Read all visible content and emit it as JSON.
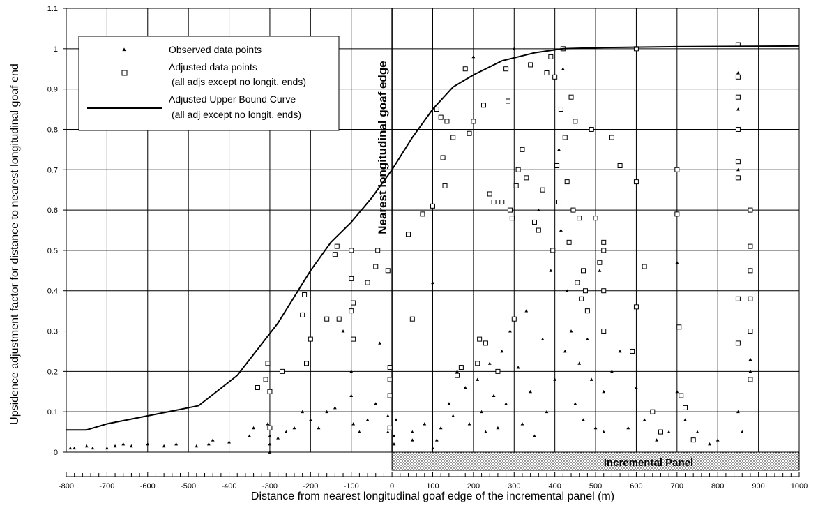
{
  "chart_data": {
    "type": "scatter",
    "xlabel": "Distance from nearest longitudinal goaf edge of the incremental panel (m)",
    "ylabel": "Upsidence adjustment factor for distance to nearest longitudinal goaf end",
    "xlim": [
      -800,
      1000
    ],
    "ylim": [
      0,
      1.1
    ],
    "x_ticks": [
      -800,
      -700,
      -600,
      -500,
      -400,
      -300,
      -200,
      -100,
      0,
      100,
      200,
      300,
      400,
      500,
      600,
      700,
      800,
      900,
      1000
    ],
    "y_ticks": [
      0,
      0.1,
      0.2,
      0.3,
      0.4,
      0.5,
      0.6,
      0.7,
      0.8,
      0.9,
      1,
      1.1
    ],
    "x_tick_labels": [
      "-800",
      "-700",
      "-600",
      "-500",
      "-400",
      "-300",
      "-200",
      "-100",
      "0",
      "100",
      "200",
      "300",
      "400",
      "500",
      "600",
      "700",
      "800",
      "900",
      "1000"
    ],
    "y_tick_labels": [
      "0",
      "0.1",
      "0.2",
      "0.3",
      "0.4",
      "0.5",
      "0.6",
      "0.7",
      "0.8",
      "0.9",
      "1",
      "1.1"
    ],
    "grid": true,
    "legend_position": "top-left",
    "legend": {
      "observed": "Observed data points",
      "adjusted_line1": "Adjusted data points",
      "adjusted_line2": "(all adjs except no longit. ends)",
      "curve_line1": "Adjusted Upper Bound Curve",
      "curve_line2": "(all adj except no longit. ends)"
    },
    "annotations": {
      "vertical_label": "Nearest longitudinal goaf edge",
      "panel_label": "Incremental Panel"
    },
    "panel_extent": [
      0,
      1000
    ],
    "series": [
      {
        "name": "Adjusted Upper Bound Curve",
        "style": "line",
        "x": [
          -800,
          -750,
          -700,
          -600,
          -475,
          -380,
          -280,
          -200,
          -150,
          -100,
          -50,
          0,
          50,
          100,
          150,
          200,
          270,
          350,
          420,
          520,
          700,
          1000
        ],
        "y": [
          0.055,
          0.055,
          0.07,
          0.09,
          0.115,
          0.19,
          0.32,
          0.45,
          0.52,
          0.57,
          0.63,
          0.7,
          0.78,
          0.85,
          0.905,
          0.935,
          0.97,
          0.99,
          1.0,
          1.003,
          1.005,
          1.007
        ]
      },
      {
        "name": "Observed data points",
        "style": "triangle",
        "x": [
          -790,
          -780,
          -750,
          -735,
          -700,
          -680,
          -660,
          -640,
          -600,
          -560,
          -530,
          -480,
          -450,
          -440,
          -400,
          -350,
          -340,
          -305,
          -300,
          -300,
          -300,
          -280,
          -260,
          -240,
          -220,
          -200,
          -180,
          -160,
          -140,
          -120,
          -100,
          -100,
          -95,
          -80,
          -60,
          -40,
          -30,
          -10,
          -10,
          5,
          5,
          10,
          50,
          50,
          80,
          100,
          100,
          110,
          120,
          140,
          150,
          160,
          180,
          190,
          200,
          210,
          220,
          230,
          240,
          250,
          260,
          270,
          280,
          290,
          300,
          310,
          320,
          330,
          340,
          350,
          360,
          370,
          380,
          390,
          400,
          410,
          415,
          420,
          425,
          430,
          440,
          450,
          460,
          470,
          480,
          490,
          500,
          510,
          520,
          520,
          520,
          540,
          560,
          580,
          600,
          620,
          640,
          650,
          680,
          700,
          700,
          720,
          750,
          780,
          800,
          850,
          850,
          850,
          850,
          860,
          880,
          880
        ],
        "y": [
          0.01,
          0.01,
          0.015,
          0.01,
          0.01,
          0.015,
          0.02,
          0.015,
          0.02,
          0.015,
          0.02,
          0.015,
          0.02,
          0.03,
          0.025,
          0.04,
          0.06,
          0.07,
          0.04,
          0.02,
          0.0,
          0.035,
          0.05,
          0.06,
          0.1,
          0.08,
          0.06,
          0.1,
          0.11,
          0.3,
          0.2,
          0.14,
          0.07,
          0.05,
          0.08,
          0.12,
          0.27,
          0.05,
          0.09,
          0.04,
          0.02,
          0.08,
          0.05,
          0.03,
          0.07,
          0.42,
          0.01,
          0.03,
          0.06,
          0.12,
          0.09,
          0.2,
          0.16,
          0.07,
          0.98,
          0.18,
          0.1,
          0.05,
          0.22,
          0.14,
          0.06,
          0.25,
          0.12,
          0.3,
          1.0,
          0.21,
          0.07,
          0.35,
          0.15,
          0.04,
          0.6,
          0.28,
          0.1,
          0.45,
          0.18,
          0.75,
          0.55,
          0.95,
          0.25,
          0.4,
          0.3,
          0.12,
          0.22,
          0.08,
          0.28,
          0.18,
          0.06,
          0.45,
          0.3,
          0.15,
          0.05,
          0.2,
          0.25,
          0.06,
          0.16,
          0.08,
          0.1,
          0.03,
          0.05,
          0.47,
          0.15,
          0.08,
          0.05,
          0.02,
          0.03,
          0.94,
          0.85,
          0.7,
          0.1,
          0.05,
          0.23,
          0.2
        ]
      },
      {
        "name": "Adjusted data points",
        "style": "square",
        "x": [
          -330,
          -310,
          -305,
          -300,
          -300,
          -270,
          -220,
          -215,
          -210,
          -200,
          -160,
          -140,
          -135,
          -130,
          -100,
          -100,
          -100,
          -95,
          -95,
          -60,
          -40,
          -35,
          -10,
          -5,
          -5,
          -5,
          -5,
          40,
          50,
          75,
          100,
          110,
          120,
          125,
          130,
          135,
          150,
          160,
          170,
          180,
          190,
          200,
          210,
          215,
          225,
          230,
          240,
          250,
          260,
          270,
          280,
          285,
          290,
          295,
          300,
          305,
          310,
          320,
          330,
          340,
          350,
          360,
          370,
          380,
          390,
          395,
          400,
          405,
          410,
          415,
          420,
          425,
          430,
          435,
          440,
          445,
          450,
          455,
          460,
          465,
          470,
          475,
          480,
          490,
          500,
          510,
          520,
          520,
          520,
          520,
          540,
          560,
          590,
          600,
          600,
          600,
          620,
          640,
          660,
          700,
          700,
          705,
          710,
          720,
          740,
          850,
          850,
          850,
          850,
          850,
          850,
          850,
          850,
          880,
          880,
          880,
          880,
          880,
          880
        ],
        "y": [
          0.16,
          0.18,
          0.22,
          0.15,
          0.06,
          0.2,
          0.34,
          0.39,
          0.22,
          0.28,
          0.33,
          0.49,
          0.51,
          0.33,
          0.5,
          0.43,
          0.35,
          0.37,
          0.28,
          0.42,
          0.46,
          0.5,
          0.45,
          0.21,
          0.18,
          0.14,
          0.06,
          0.54,
          0.33,
          0.59,
          0.61,
          0.85,
          0.83,
          0.73,
          0.66,
          0.82,
          0.78,
          0.19,
          0.21,
          0.95,
          0.79,
          0.82,
          0.22,
          0.28,
          0.86,
          0.27,
          0.64,
          0.62,
          0.2,
          0.62,
          0.95,
          0.87,
          0.6,
          0.58,
          0.33,
          0.66,
          0.7,
          0.75,
          0.68,
          0.96,
          0.57,
          0.55,
          0.65,
          0.94,
          0.98,
          0.5,
          0.93,
          0.71,
          0.62,
          0.85,
          1.0,
          0.78,
          0.67,
          0.52,
          0.88,
          0.6,
          0.82,
          0.42,
          0.58,
          0.38,
          0.45,
          0.4,
          0.35,
          0.8,
          0.58,
          0.47,
          0.52,
          0.5,
          0.4,
          0.3,
          0.78,
          0.71,
          0.25,
          1.0,
          0.67,
          0.36,
          0.46,
          0.1,
          0.05,
          0.7,
          0.59,
          0.31,
          0.14,
          0.11,
          0.03,
          1.01,
          0.93,
          0.88,
          0.8,
          0.72,
          0.68,
          0.38,
          0.27,
          0.6,
          0.51,
          0.45,
          0.38,
          0.3,
          0.18
        ]
      }
    ]
  }
}
